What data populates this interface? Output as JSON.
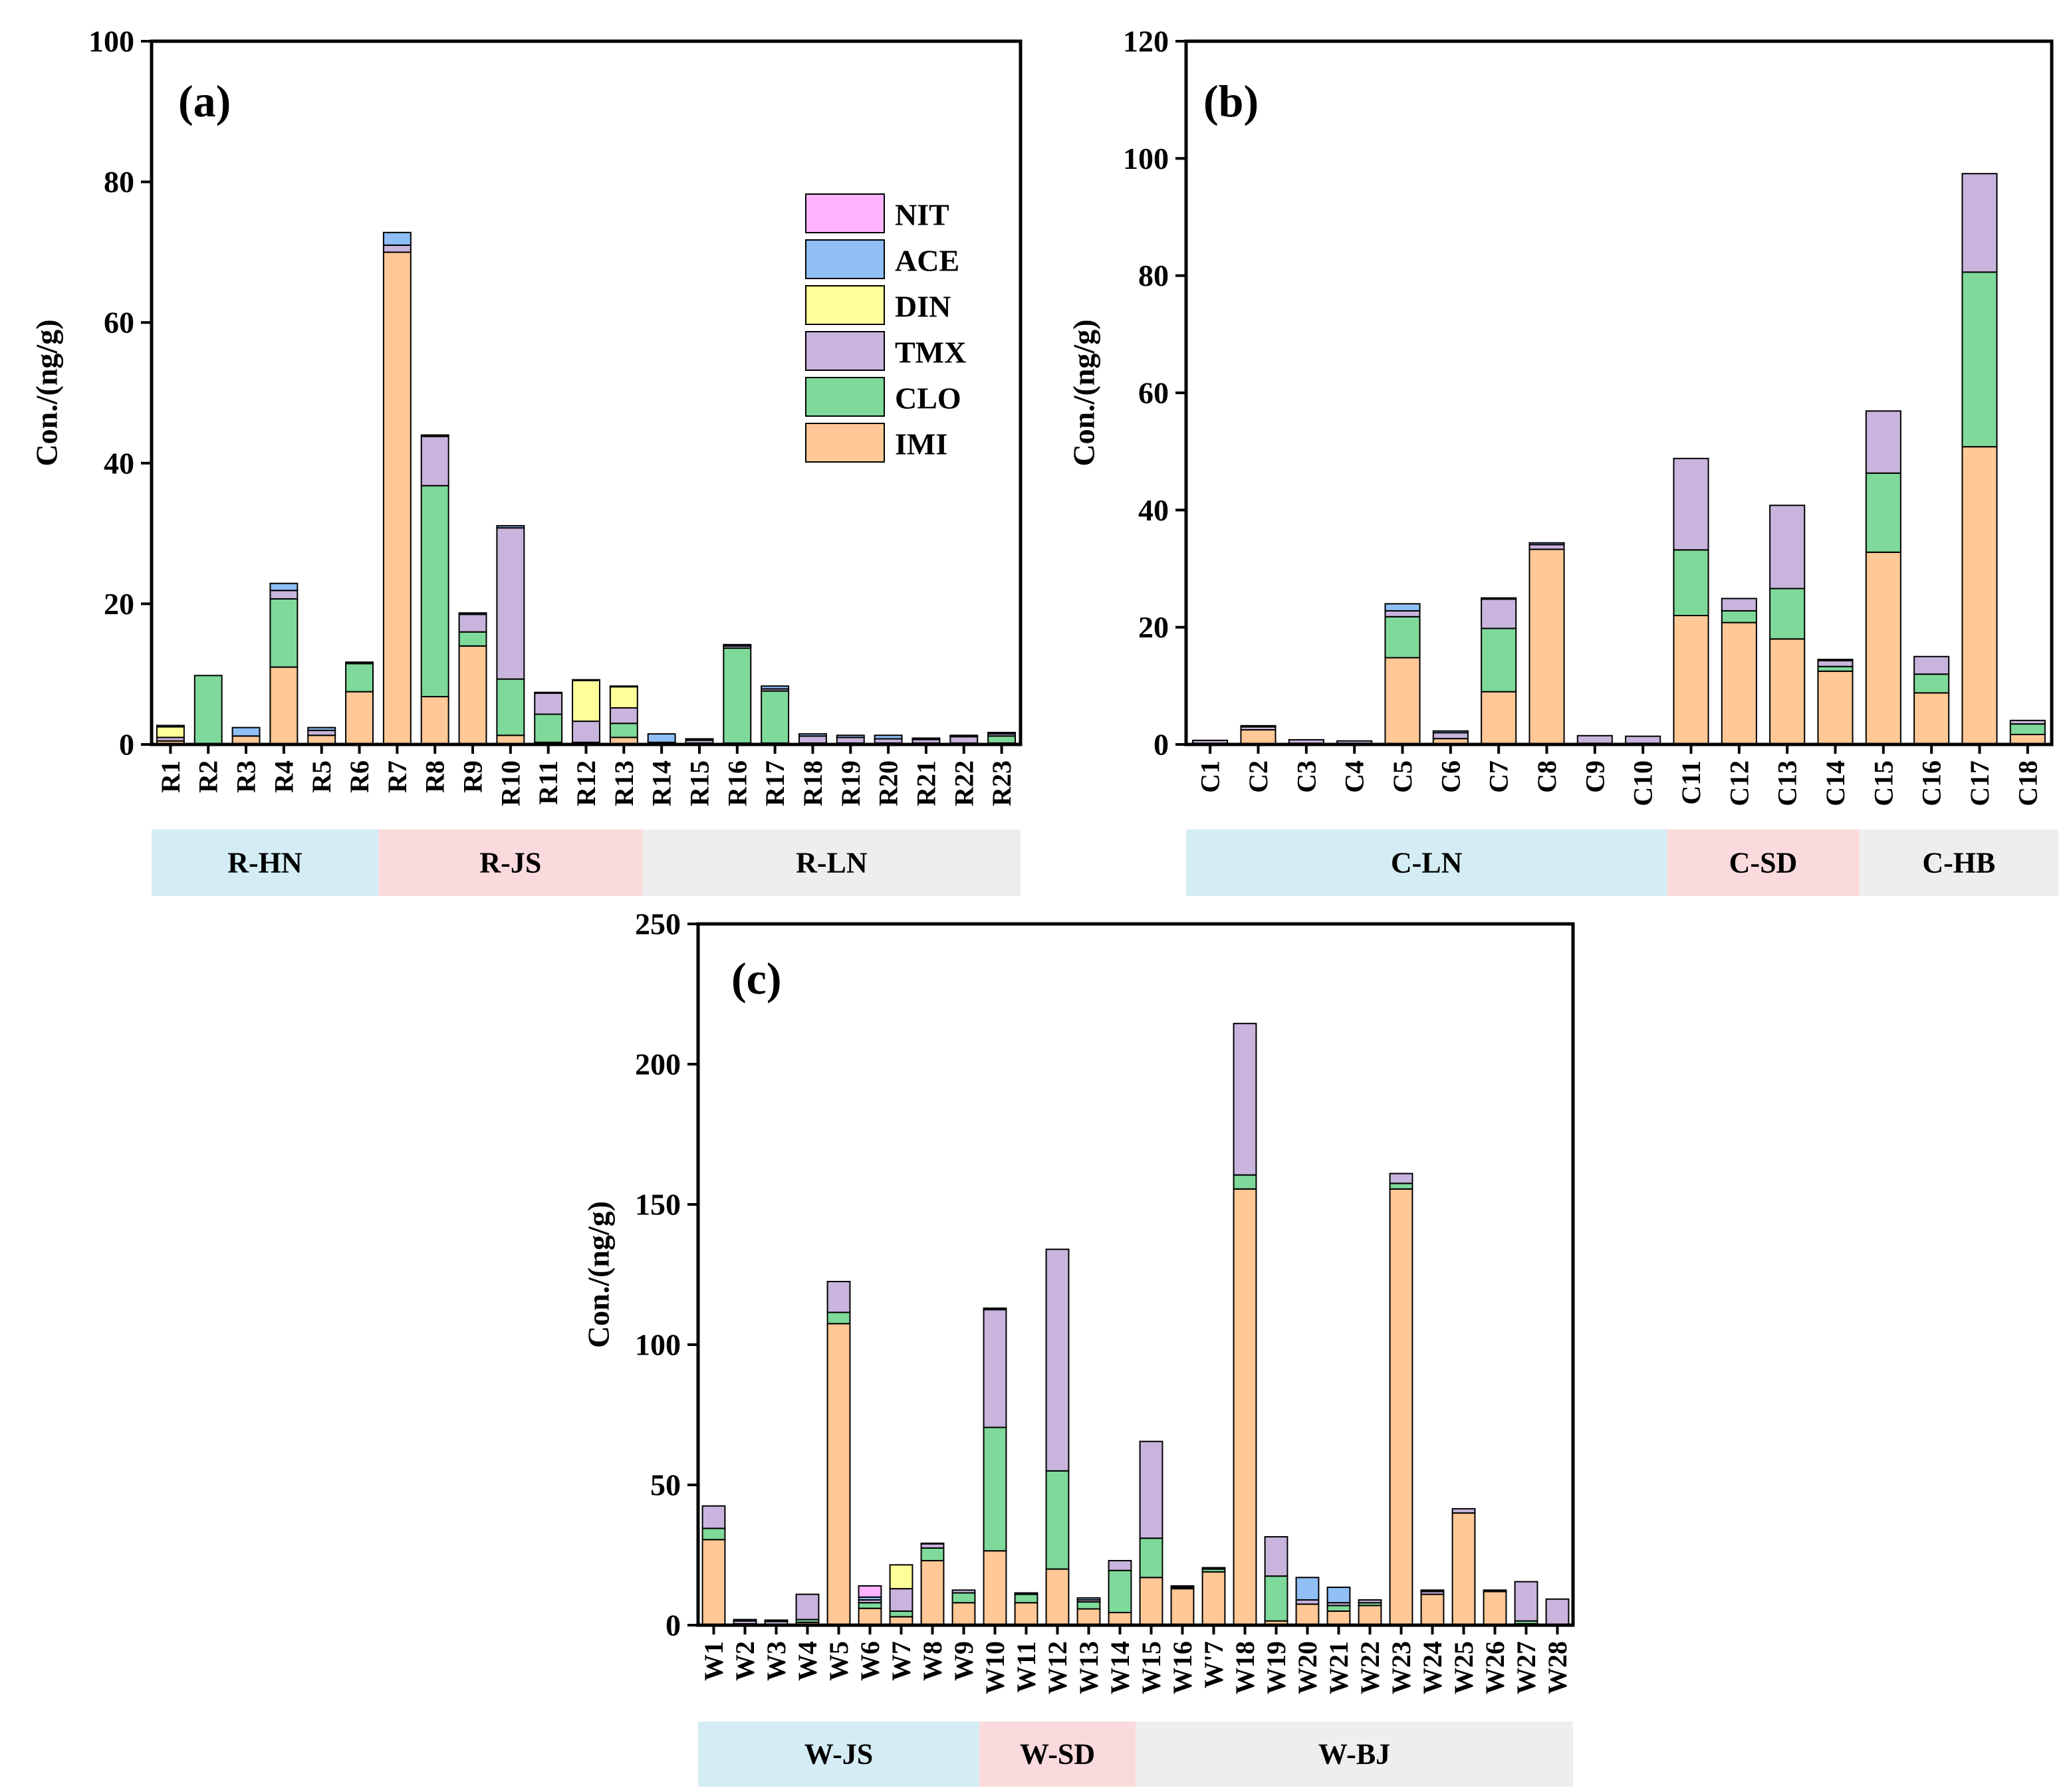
{
  "legend": [
    {
      "key": "NIT",
      "color": "#FFB3FF"
    },
    {
      "key": "ACE",
      "color": "#8FBFF5"
    },
    {
      "key": "DIN",
      "color": "#FFFF99"
    },
    {
      "key": "TMX",
      "color": "#C8B4DC"
    },
    {
      "key": "CLO",
      "color": "#7FD99A"
    },
    {
      "key": "IMI",
      "color": "#FFC896"
    }
  ],
  "group_colors": {
    "blue": "#D4EDF5",
    "pink": "#FADADD",
    "grey": "#EEEEEE"
  },
  "chart_data": [
    {
      "id": "a",
      "type": "bar",
      "stacked": true,
      "panel_label": "(a)",
      "ylabel": "Con./(ng/g)",
      "ylim": [
        0,
        100
      ],
      "yticks": [
        0,
        20,
        40,
        60,
        80,
        100
      ],
      "categories": [
        "R1",
        "R2",
        "R3",
        "R4",
        "R5",
        "R6",
        "R7",
        "R8",
        "R9",
        "R10",
        "R11",
        "R12",
        "R13",
        "R14",
        "R15",
        "R16",
        "R17",
        "R18",
        "R19",
        "R20",
        "R21",
        "R22",
        "R23"
      ],
      "series": [
        {
          "name": "IMI",
          "values": [
            0.5,
            0,
            1.2,
            11,
            1.3,
            7.5,
            70,
            6.8,
            14,
            1.3,
            0.3,
            0.3,
            1,
            0.3,
            0.2,
            0.2,
            0.2,
            0.2,
            0.2,
            0.2,
            0.2,
            0.2,
            0.2
          ]
        },
        {
          "name": "CLO",
          "values": [
            0,
            9.8,
            0,
            9.7,
            0,
            4,
            0,
            30,
            2,
            8,
            4,
            0,
            2,
            0,
            0,
            13.5,
            7.4,
            0,
            0,
            0,
            0,
            0,
            1
          ]
        },
        {
          "name": "TMX",
          "values": [
            0.5,
            0,
            0,
            1.2,
            0.7,
            0,
            1,
            7,
            2.5,
            21.5,
            3,
            3,
            2.2,
            0,
            0.4,
            0.3,
            0.3,
            1,
            0.8,
            0.6,
            0.5,
            0.9,
            0.3
          ]
        },
        {
          "name": "DIN",
          "values": [
            1.5,
            0,
            0,
            0,
            0,
            0,
            0,
            0,
            0,
            0,
            0,
            5.8,
            3,
            0,
            0,
            0,
            0,
            0,
            0,
            0,
            0,
            0,
            0
          ]
        },
        {
          "name": "ACE",
          "values": [
            0.2,
            0,
            1.2,
            1,
            0.4,
            0.2,
            1.8,
            0.2,
            0.2,
            0.3,
            0.1,
            0.1,
            0.1,
            1.2,
            0.2,
            0.2,
            0.4,
            0.3,
            0.3,
            0.5,
            0.2,
            0.2,
            0.2
          ]
        },
        {
          "name": "NIT",
          "values": [
            0,
            0,
            0,
            0,
            0,
            0,
            0,
            0,
            0,
            0,
            0,
            0,
            0,
            0,
            0,
            0,
            0,
            0,
            0,
            0,
            0,
            0,
            0
          ]
        }
      ],
      "groups": [
        {
          "label": "R-HN",
          "from": 0,
          "to": 5,
          "color": "blue"
        },
        {
          "label": "R-JS",
          "from": 6,
          "to": 12,
          "color": "pink"
        },
        {
          "label": "R-LN",
          "from": 13,
          "to": 22,
          "color": "grey"
        }
      ],
      "legend_visible": true
    },
    {
      "id": "b",
      "type": "bar",
      "stacked": true,
      "panel_label": "(b)",
      "ylabel": "Con./(ng/g)",
      "ylim": [
        0,
        120
      ],
      "yticks": [
        0,
        20,
        40,
        60,
        80,
        100,
        120
      ],
      "categories": [
        "C1",
        "C2",
        "C3",
        "C4",
        "C5",
        "C6",
        "C7",
        "C8",
        "C9",
        "C10",
        "C11",
        "C12",
        "C13",
        "C14",
        "C15",
        "C16",
        "C17",
        "C18"
      ],
      "series": [
        {
          "name": "IMI",
          "values": [
            0.2,
            2.5,
            0.2,
            0.2,
            14.8,
            1,
            9,
            33.3,
            0.2,
            0.2,
            22,
            20.8,
            18,
            12.5,
            32.8,
            8.8,
            50.8,
            1.7
          ]
        },
        {
          "name": "CLO",
          "values": [
            0,
            0,
            0,
            0,
            7,
            0,
            10.8,
            0,
            0,
            0,
            11.2,
            2,
            8.6,
            0.8,
            13.5,
            3.2,
            29.8,
            1.8
          ]
        },
        {
          "name": "TMX",
          "values": [
            0.5,
            0.5,
            0.6,
            0.4,
            1,
            1,
            5,
            0.8,
            1.3,
            1.2,
            15.6,
            2.1,
            14.2,
            1,
            10.6,
            3,
            16.8,
            0.6
          ]
        },
        {
          "name": "DIN",
          "values": [
            0,
            0,
            0,
            0,
            0,
            0,
            0,
            0,
            0,
            0,
            0,
            0,
            0,
            0,
            0,
            0,
            0,
            0
          ]
        },
        {
          "name": "ACE",
          "values": [
            0,
            0.2,
            0,
            0,
            1.2,
            0.3,
            0.2,
            0.3,
            0,
            0,
            0,
            0,
            0,
            0.2,
            0,
            0,
            0,
            0
          ]
        },
        {
          "name": "NIT",
          "values": [
            0,
            0,
            0,
            0,
            0,
            0,
            0,
            0,
            0,
            0,
            0,
            0,
            0,
            0,
            0,
            0,
            0,
            0
          ]
        }
      ],
      "groups": [
        {
          "label": "C-LN",
          "from": 0,
          "to": 9,
          "color": "blue"
        },
        {
          "label": "C-SD",
          "from": 10,
          "to": 13,
          "color": "pink"
        },
        {
          "label": "C-HB",
          "from": 14,
          "to": 17,
          "color": "grey"
        }
      ],
      "legend_visible": false
    },
    {
      "id": "c",
      "type": "bar",
      "stacked": true,
      "panel_label": "(c)",
      "ylabel": "Con./(ng/g)",
      "ylim": [
        0,
        250
      ],
      "yticks": [
        0,
        50,
        100,
        150,
        200,
        250
      ],
      "categories": [
        "W1",
        "W2",
        "W3",
        "W4",
        "W5",
        "W6",
        "W7",
        "W8",
        "W9",
        "W10",
        "W11",
        "W12",
        "W13",
        "W14",
        "W15",
        "W16",
        "W'7",
        "W18",
        "W19",
        "W20",
        "W21",
        "W22",
        "W23",
        "W24",
        "W25",
        "W26",
        "W27",
        "W28"
      ],
      "series": [
        {
          "name": "IMI",
          "values": [
            30.5,
            0.5,
            0.3,
            1,
            107.5,
            6,
            3,
            23,
            8,
            26.5,
            8,
            20,
            5.8,
            4.5,
            17,
            13,
            19,
            155.5,
            1.5,
            7.5,
            5,
            7,
            155.5,
            11,
            40,
            12,
            0.5,
            0.3
          ]
        },
        {
          "name": "CLO",
          "values": [
            4,
            0,
            0,
            1,
            4,
            2,
            2,
            4.5,
            3.5,
            44,
            3,
            35,
            2.5,
            15,
            14,
            0.5,
            1,
            5,
            16,
            0,
            2,
            1,
            2,
            0,
            0,
            0,
            1,
            0
          ]
        },
        {
          "name": "TMX",
          "values": [
            8,
            1,
            1,
            9,
            11,
            1,
            8,
            1.5,
            1,
            42,
            0.5,
            79,
            0.7,
            3.5,
            34.5,
            0.5,
            0.5,
            54,
            14,
            1.5,
            1,
            1,
            3.5,
            1,
            1.5,
            0.5,
            14,
            9
          ]
        },
        {
          "name": "DIN",
          "values": [
            0,
            0,
            0,
            0,
            0,
            0,
            8.5,
            0,
            0,
            0,
            0,
            0,
            0,
            0,
            0,
            0,
            0,
            0,
            0,
            0,
            0,
            0,
            0,
            0,
            0,
            0,
            0,
            0
          ]
        },
        {
          "name": "ACE",
          "values": [
            0,
            0.5,
            0.5,
            0,
            0,
            1,
            0,
            0.2,
            0,
            0.5,
            0,
            0,
            0.7,
            0,
            0,
            0,
            0,
            0,
            0,
            8,
            5.5,
            0,
            0,
            0.5,
            0,
            0,
            0,
            0
          ]
        },
        {
          "name": "NIT",
          "values": [
            0,
            0,
            0,
            0,
            0,
            4,
            0,
            0,
            0,
            0,
            0,
            0,
            0,
            0,
            0,
            0,
            0,
            0,
            0,
            0,
            0,
            0,
            0,
            0,
            0,
            0,
            0,
            0
          ]
        }
      ],
      "groups": [
        {
          "label": "W-JS",
          "from": 0,
          "to": 8,
          "color": "blue"
        },
        {
          "label": "W-SD",
          "from": 9,
          "to": 13,
          "color": "pink"
        },
        {
          "label": "W-BJ",
          "from": 14,
          "to": 27,
          "color": "grey"
        }
      ],
      "legend_visible": false
    }
  ]
}
